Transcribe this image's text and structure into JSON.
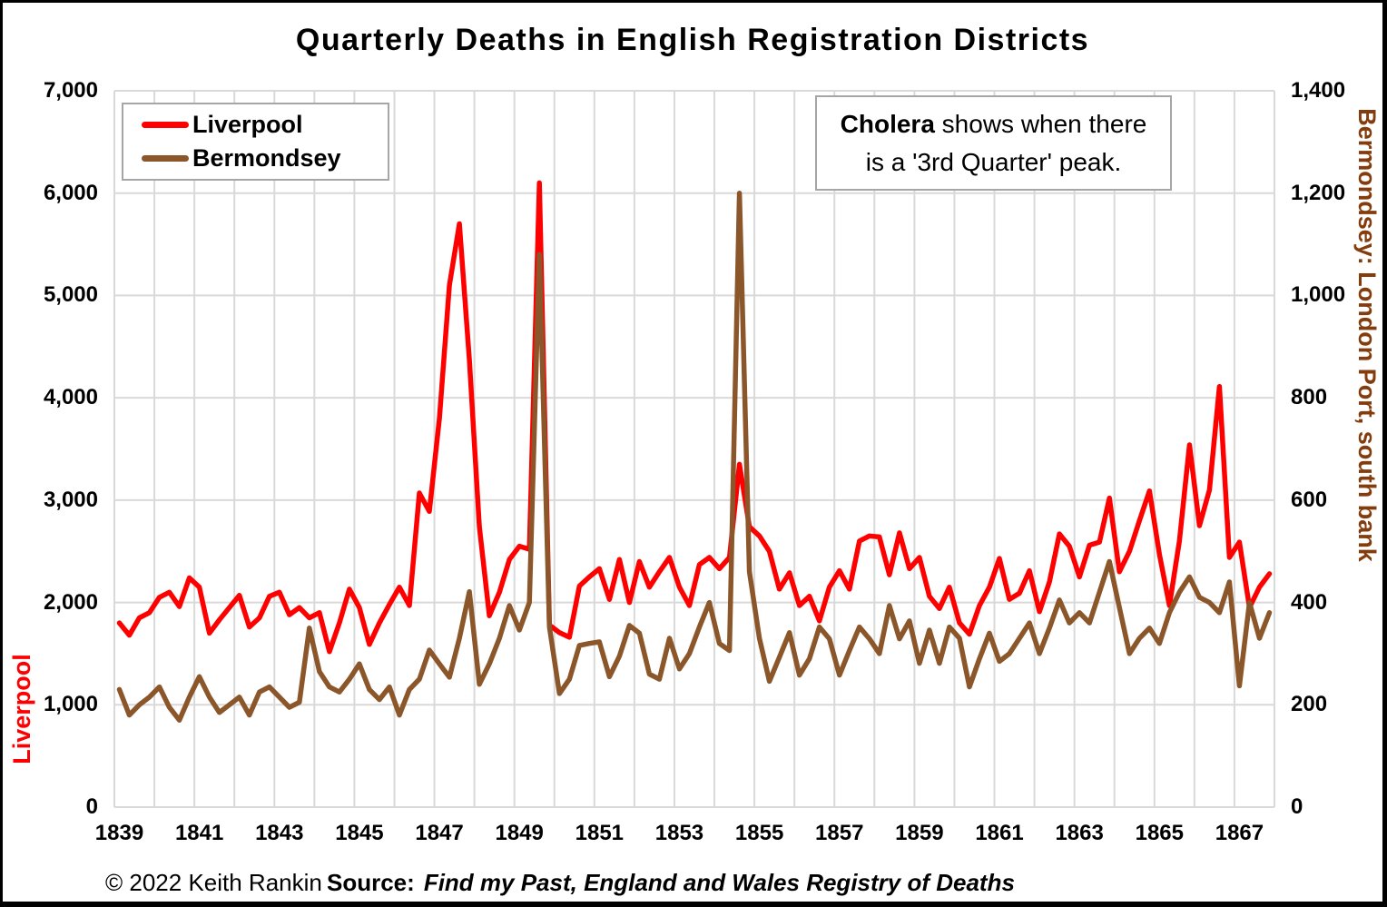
{
  "title": "Quarterly Deaths in English Registration Districts",
  "legend": {
    "items": [
      {
        "label": "Liverpool",
        "color": "#FF0000"
      },
      {
        "label": "Bermondsey",
        "color": "#8B572A"
      }
    ]
  },
  "annotation": {
    "line1_bold": "Cholera",
    "line1_rest": " shows when there",
    "line2": "is a '3rd Quarter' peak."
  },
  "axes": {
    "left": {
      "title": "Liverpool",
      "color": "#FF0000",
      "ticks": [
        "7,000",
        "6,000",
        "5,000",
        "4,000",
        "3,000",
        "2,000",
        "1,000",
        "0"
      ]
    },
    "right": {
      "title": "Bermondsey: London Port, south bank",
      "color": "#843C0C",
      "ticks": [
        "1,400",
        "1,200",
        "1,000",
        "800",
        "600",
        "400",
        "200",
        "0"
      ]
    },
    "x": {
      "labels": [
        "1839",
        "1841",
        "1843",
        "1845",
        "1847",
        "1849",
        "1851",
        "1853",
        "1855",
        "1857",
        "1859",
        "1861",
        "1863",
        "1865",
        "1867"
      ]
    }
  },
  "footer": {
    "copyright": "© 2022 Keith Rankin",
    "source_label": "Source:",
    "source_text": "Find my Past, England and Wales Registry of Deaths"
  },
  "colors": {
    "gridline": "#D9D9D9",
    "box_border": "#A6A6A6"
  },
  "chart_data": {
    "type": "line",
    "title": "Quarterly Deaths in English Registration Districts",
    "frequency": "quarterly",
    "x_range": "1839 Q1 - 1867 Q4",
    "x_quarters": 116,
    "x_tick_labels": [
      "1839",
      "1841",
      "1843",
      "1845",
      "1847",
      "1849",
      "1851",
      "1853",
      "1855",
      "1857",
      "1859",
      "1861",
      "1863",
      "1865",
      "1867"
    ],
    "ylim_left": [
      0,
      7000
    ],
    "ylim_right": [
      0,
      1400
    ],
    "grid": true,
    "legend_position": "top-left",
    "annotation": "Cholera shows when there is a '3rd Quarter' peak.",
    "series": [
      {
        "name": "Liverpool",
        "axis": "left",
        "color": "#FF0000",
        "values": [
          1800,
          1680,
          1850,
          1900,
          2050,
          2100,
          1960,
          2240,
          2150,
          1700,
          1830,
          1950,
          2070,
          1760,
          1850,
          2060,
          2100,
          1880,
          1950,
          1850,
          1900,
          1520,
          1800,
          2130,
          1950,
          1590,
          1800,
          1980,
          2150,
          1970,
          3070,
          2890,
          3800,
          5100,
          5700,
          4370,
          2740,
          1870,
          2100,
          2420,
          2550,
          2520,
          6100,
          1780,
          1705,
          1660,
          2160,
          2250,
          2330,
          2030,
          2420,
          2000,
          2400,
          2150,
          2300,
          2440,
          2150,
          1970,
          2370,
          2440,
          2330,
          2440,
          3350,
          2740,
          2650,
          2500,
          2130,
          2290,
          1970,
          2060,
          1820,
          2150,
          2310,
          2130,
          2600,
          2650,
          2640,
          2270,
          2680,
          2330,
          2440,
          2060,
          1940,
          2150,
          1800,
          1690,
          1970,
          2150,
          2430,
          2030,
          2090,
          2310,
          1910,
          2200,
          2670,
          2550,
          2250,
          2560,
          2590,
          3020,
          2300,
          2500,
          2800,
          3090,
          2470,
          1970,
          2600,
          3540,
          2750,
          3100,
          4110,
          2440,
          2590,
          1950,
          2150,
          2280
        ]
      },
      {
        "name": "Bermondsey",
        "axis": "right",
        "color": "#8B572A",
        "values": [
          230,
          180,
          200,
          215,
          235,
          195,
          170,
          215,
          255,
          215,
          185,
          200,
          215,
          180,
          225,
          235,
          215,
          195,
          205,
          350,
          265,
          235,
          225,
          250,
          280,
          230,
          210,
          235,
          180,
          230,
          250,
          307,
          280,
          254,
          330,
          421,
          240,
          280,
          330,
          394,
          346,
          400,
          1080,
          352,
          222,
          250,
          316,
          320,
          323,
          255,
          295,
          355,
          340,
          260,
          250,
          330,
          270,
          300,
          352,
          400,
          320,
          306,
          1200,
          460,
          330,
          246,
          293,
          341,
          258,
          290,
          352,
          329,
          258,
          306,
          352,
          329,
          300,
          394,
          329,
          364,
          281,
          346,
          281,
          352,
          330,
          235,
          290,
          340,
          285,
          300,
          330,
          360,
          300,
          350,
          405,
          360,
          380,
          360,
          420,
          480,
          390,
          300,
          330,
          350,
          320,
          380,
          420,
          450,
          410,
          400,
          380,
          440,
          237,
          400,
          330,
          380
        ]
      }
    ]
  }
}
